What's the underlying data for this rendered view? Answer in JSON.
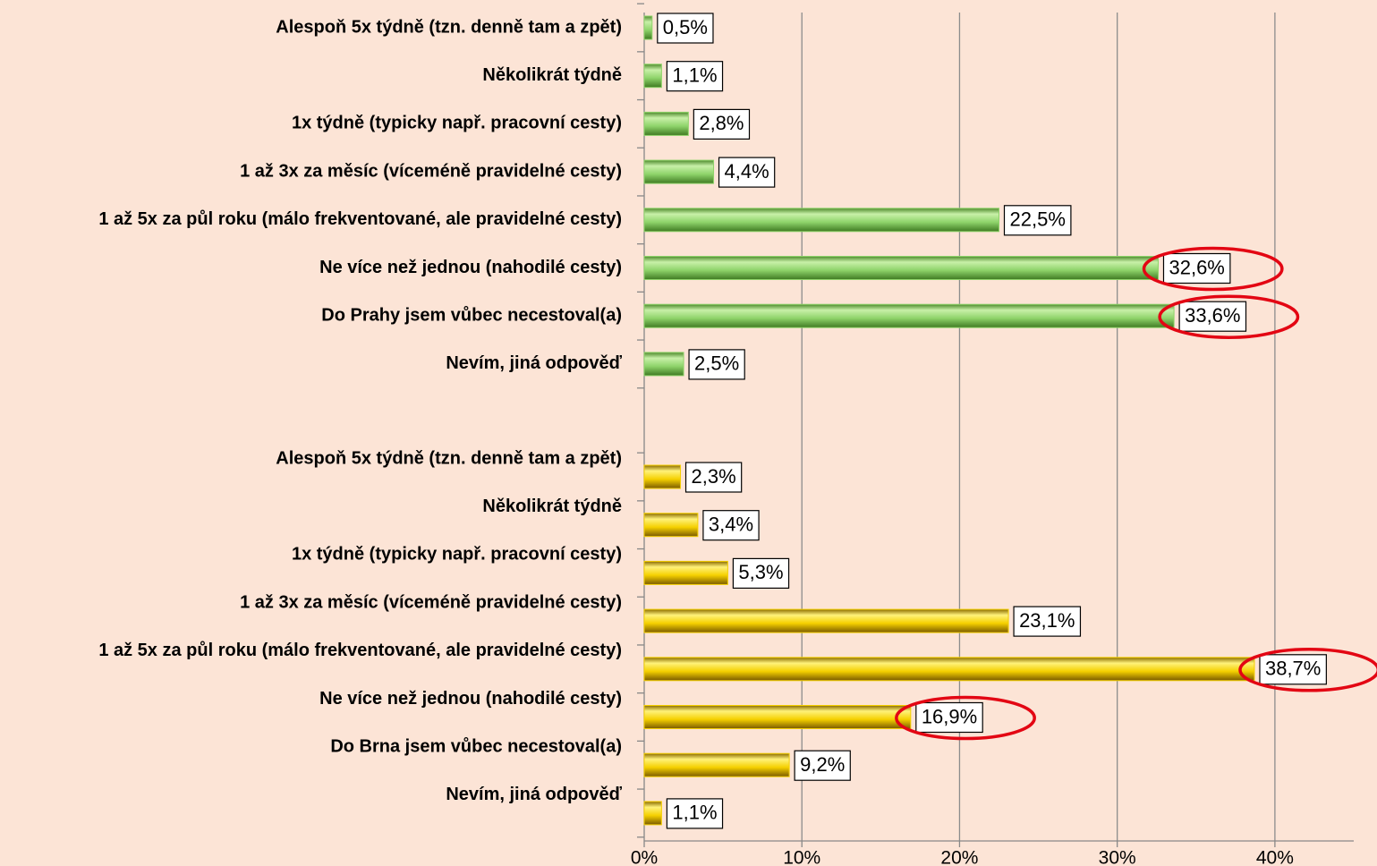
{
  "chart_data": {
    "type": "bar",
    "orientation": "horizontal",
    "xlim": [
      0,
      45
    ],
    "xticks": [
      {
        "value": 0,
        "label": "0%"
      },
      {
        "value": 10,
        "label": "10%"
      },
      {
        "value": 20,
        "label": "20%"
      },
      {
        "value": 30,
        "label": "30%"
      },
      {
        "value": 40,
        "label": "40%"
      }
    ],
    "grid": true,
    "groups": [
      {
        "color": "#8ed36a",
        "categories": [
          "Alespoň 5x týdně (tzn. denně tam a zpět)",
          "Několikrát týdně",
          "1x týdně (typicky např. pracovní cesty)",
          "1 až 3x za měsíc (víceméně pravidelné cesty)",
          "1 až 5x za půl roku (málo frekventované, ale pravidelné cesty)",
          "Ne více než jednou (nahodilé cesty)",
          "Do Prahy jsem vůbec necestoval(a)",
          "Nevím, jiná odpověď"
        ],
        "values": [
          0.5,
          1.1,
          2.8,
          4.4,
          22.5,
          32.6,
          33.6,
          2.5
        ],
        "value_labels": [
          "0,5%",
          "1,1%",
          "2,8%",
          "4,4%",
          "22,5%",
          "32,6%",
          "33,6%",
          "2,5%"
        ],
        "highlighted": [
          5,
          6
        ]
      },
      {
        "color": "#f5d000",
        "categories": [
          "Alespoň 5x týdně (tzn. denně tam a zpět)",
          "Několikrát týdně",
          "1x týdně (typicky např. pracovní cesty)",
          "1 až 3x za měsíc (víceméně pravidelné cesty)",
          "1 až 5x za půl roku (málo frekventované, ale pravidelné cesty)",
          "Ne více než jednou (nahodilé cesty)",
          "Do Brna jsem vůbec necestoval(a)",
          "Nevím, jiná odpověď"
        ],
        "values": [
          2.3,
          3.4,
          5.3,
          23.1,
          38.7,
          16.9,
          9.2,
          1.1
        ],
        "value_labels": [
          "2,3%",
          "3,4%",
          "5,3%",
          "23,1%",
          "38,7%",
          "16,9%",
          "9,2%",
          "1,1%"
        ],
        "highlighted": [
          4,
          5
        ]
      }
    ]
  }
}
